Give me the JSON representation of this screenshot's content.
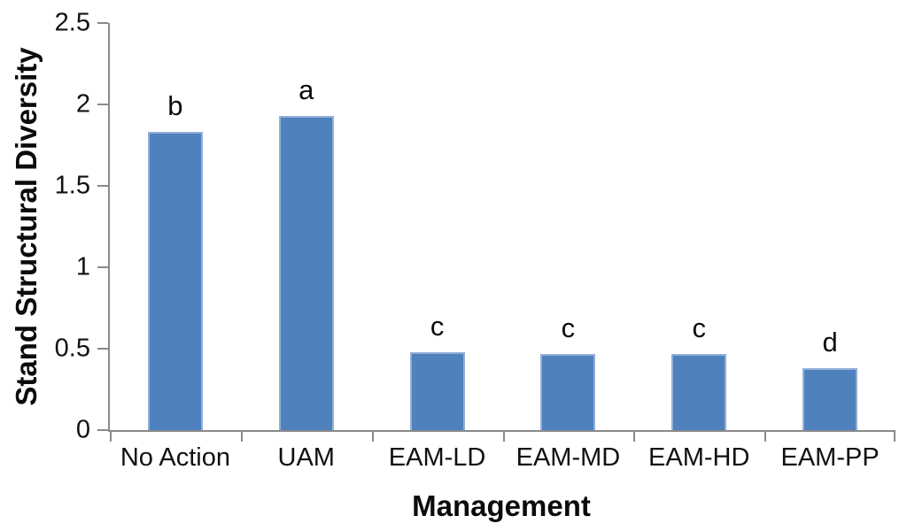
{
  "chart_data": {
    "type": "bar",
    "title": "",
    "xlabel": "Management",
    "ylabel": "Stand Structural Diversity",
    "categories": [
      "No Action",
      "UAM",
      "EAM-LD",
      "EAM-MD",
      "EAM-HD",
      "EAM-PP"
    ],
    "values": [
      1.83,
      1.93,
      0.48,
      0.47,
      0.47,
      0.38
    ],
    "bar_letters": [
      "b",
      "a",
      "c",
      "c",
      "c",
      "d"
    ],
    "yticks": [
      "0",
      "0.5",
      "1",
      "1.5",
      "2",
      "2.5"
    ],
    "ytick_values": [
      0,
      0.5,
      1,
      1.5,
      2,
      2.5
    ],
    "ylim": [
      0,
      2.5
    ],
    "grid": false,
    "legend": false,
    "bar_color": "#4F81BD",
    "bar_border_color": "#93AFD7",
    "axis_color": "#8a8a8a",
    "text_color": "#111111"
  }
}
